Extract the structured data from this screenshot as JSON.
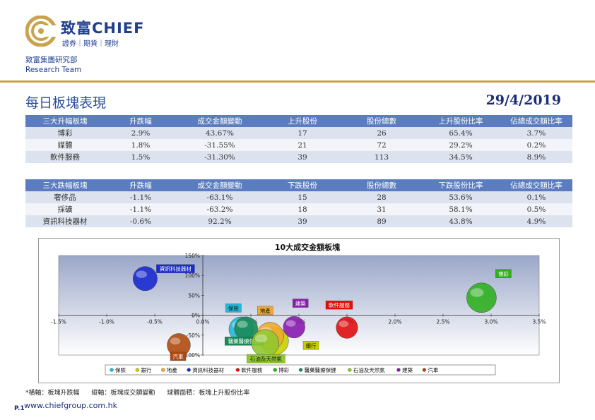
{
  "header": {
    "logo_text": "致富CHIEF",
    "logo_sub": "證券｜期貨｜理財",
    "dept_line1": "致富集團研究部",
    "dept_line2": "Research Team"
  },
  "page": {
    "title": "每日板塊表現",
    "date": "29/4/2019"
  },
  "table_up": {
    "columns": [
      "三大升幅板塊",
      "升跌幅",
      "成交金額變動",
      "上升股份",
      "股份總數",
      "上升股份比率",
      "佔總成交額比率"
    ],
    "rows": [
      [
        "博彩",
        "2.9%",
        "43.67%",
        "17",
        "26",
        "65.4%",
        "3.7%"
      ],
      [
        "媒體",
        "1.8%",
        "-31.55%",
        "21",
        "72",
        "29.2%",
        "0.2%"
      ],
      [
        "軟件服務",
        "1.5%",
        "-31.30%",
        "39",
        "113",
        "34.5%",
        "8.9%"
      ]
    ]
  },
  "table_down": {
    "columns": [
      "三大跌幅板塊",
      "升跌幅",
      "成交金額變動",
      "下跌股份",
      "股份總數",
      "下跌股份比率",
      "佔總成交額比率"
    ],
    "rows": [
      [
        "奢侈品",
        "-1.1%",
        "-63.1%",
        "15",
        "28",
        "53.6%",
        "0.1%"
      ],
      [
        "採礦",
        "-1.1%",
        "-63.2%",
        "18",
        "31",
        "58.1%",
        "0.5%"
      ],
      [
        "資訊科技器材",
        "-0.6%",
        "92.2%",
        "39",
        "89",
        "43.8%",
        "4.9%"
      ]
    ]
  },
  "chart_data": {
    "type": "scatter",
    "title": "10大成交金額板塊",
    "xlim": [
      -1.5,
      3.5
    ],
    "ylim": [
      -100,
      150
    ],
    "x_ticks": [
      "-1.5%",
      "-1.0%",
      "-0.5%",
      "0.0%",
      "0.5%",
      "1.0%",
      "1.5%",
      "2.0%",
      "2.5%",
      "3.0%",
      "3.5%"
    ],
    "y_ticks": [
      "-100%",
      "-50%",
      "0%",
      "50%",
      "100%",
      "150%"
    ],
    "grid": false,
    "legend_position": "bottom",
    "series": [
      {
        "name": "保險",
        "x": 0.4,
        "y": -35,
        "size": 45,
        "color": "#22b8d8"
      },
      {
        "name": "銀行",
        "x": 0.75,
        "y": -65,
        "size": 55,
        "color": "#c8d000"
      },
      {
        "name": "地產",
        "x": 0.7,
        "y": -52,
        "size": 55,
        "color": "#f0a830"
      },
      {
        "name": "資訊科技器材",
        "x": -0.6,
        "y": 92,
        "size": 43.8,
        "color": "#1a2bd0"
      },
      {
        "name": "軟件服務",
        "x": 1.5,
        "y": -31,
        "size": 34.5,
        "color": "#e01010"
      },
      {
        "name": "博彩",
        "x": 2.9,
        "y": 44,
        "size": 65.4,
        "color": "#30b020"
      },
      {
        "name": "醫藥醫療保健",
        "x": 0.45,
        "y": -33,
        "size": 40,
        "color": "#1a8a55"
      },
      {
        "name": "石油及天然氣",
        "x": 0.65,
        "y": -70,
        "size": 55,
        "color": "#90c830"
      },
      {
        "name": "建築",
        "x": 0.95,
        "y": -30,
        "size": 35,
        "color": "#8a1ab0"
      },
      {
        "name": "汽車",
        "x": -0.25,
        "y": -75,
        "size": 40,
        "color": "#b04a10"
      }
    ]
  },
  "footnote": {
    "x_note": "*橫軸：板塊升跌幅",
    "y_note": "縱軸：板塊成交額變動",
    "size_note": "球體面積：板塊上升股份比率"
  },
  "footer": {
    "page": "P.1",
    "website": "www.chiefgroup.com.hk"
  }
}
